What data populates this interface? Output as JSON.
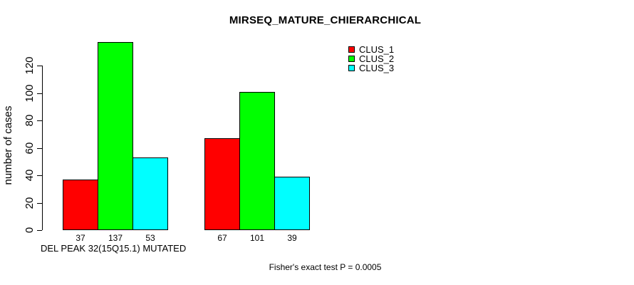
{
  "chart_data": {
    "type": "bar",
    "title": "MIRSEQ_MATURE_CHIERARCHICAL",
    "ylabel": "number of cases",
    "xlabel": "DEL PEAK 32(15Q15.1) MUTATED",
    "annotation": "Fisher's exact test P = 0.0005",
    "ylim": [
      0,
      140
    ],
    "yticks": [
      0,
      20,
      40,
      60,
      80,
      100,
      120
    ],
    "categories": [
      "DEL PEAK 32(15Q15.1) MUTATED",
      ""
    ],
    "series": [
      {
        "name": "CLUS_1",
        "color": "#ff0000",
        "values": [
          37,
          67
        ]
      },
      {
        "name": "CLUS_2",
        "color": "#00ff00",
        "values": [
          137,
          101
        ]
      },
      {
        "name": "CLUS_3",
        "color": "#00ffff",
        "values": [
          53,
          39
        ]
      }
    ],
    "show_bar_values": true,
    "legend_position": "top-right",
    "grid": false,
    "background": "#ffffff",
    "bar_border_color": "#000000"
  }
}
